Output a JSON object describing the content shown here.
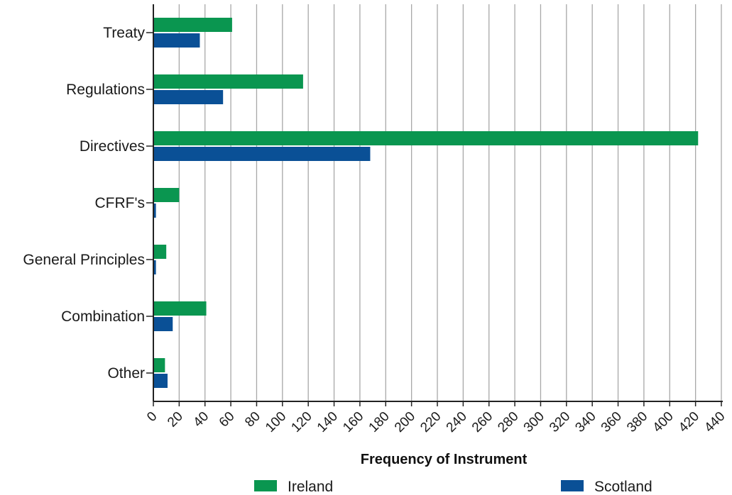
{
  "chart_data": {
    "type": "bar",
    "orientation": "horizontal",
    "categories": [
      "Treaty",
      "Regulations",
      "Directives",
      "CFRF's",
      "General Principles",
      "Combination",
      "Other"
    ],
    "series": [
      {
        "name": "Ireland",
        "color": "#0a9650",
        "values": [
          61,
          116,
          422,
          20,
          10,
          41,
          9
        ]
      },
      {
        "name": "Scotland",
        "color": "#0a5096",
        "values": [
          36,
          54,
          168,
          2,
          2,
          15,
          11
        ]
      }
    ],
    "title": "",
    "xlabel": "Frequency of Instrument",
    "ylabel": "",
    "xlim": [
      0,
      440
    ],
    "xticks": [
      0,
      20,
      40,
      60,
      80,
      100,
      120,
      140,
      160,
      180,
      200,
      220,
      240,
      260,
      280,
      300,
      320,
      340,
      360,
      380,
      400,
      420,
      440
    ],
    "grid": "vertical",
    "legend": "bottom"
  }
}
